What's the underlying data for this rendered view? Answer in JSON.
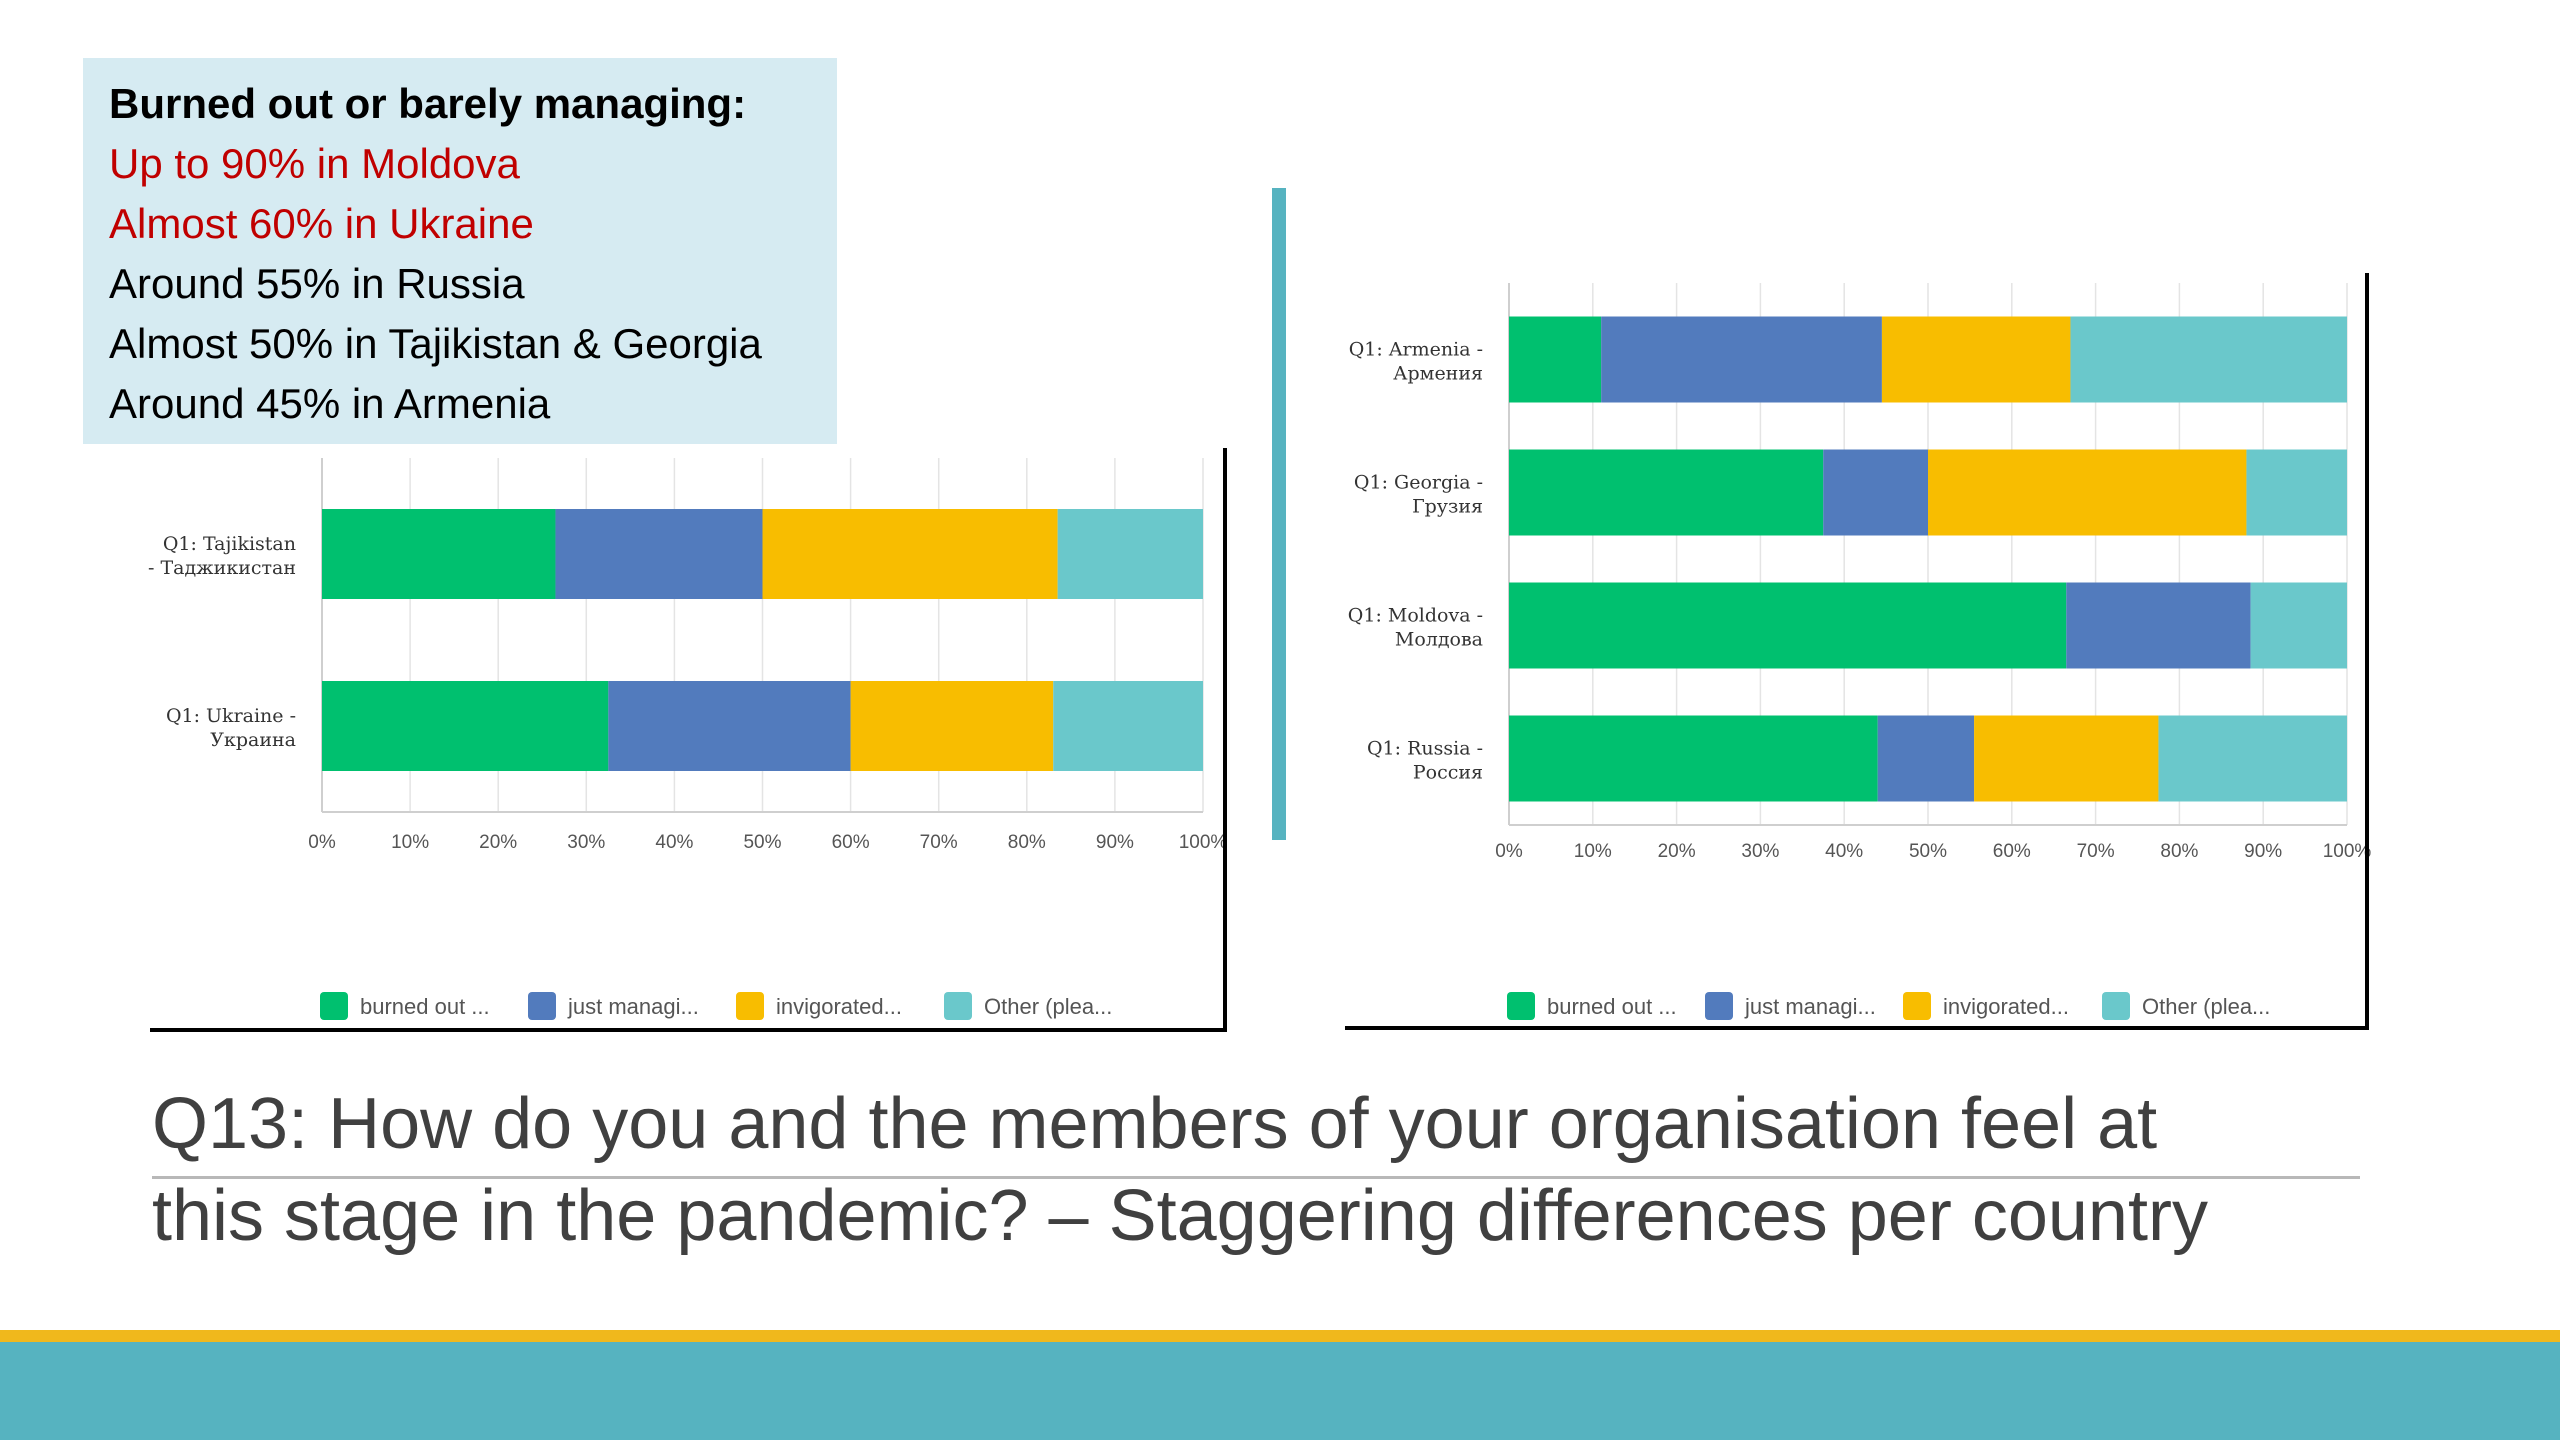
{
  "callout": {
    "heading": "Burned out or barely managing:",
    "lines": [
      "Up to 90% in Moldova",
      "Almost 60% in Ukraine",
      "Around 55% in Russia",
      "Almost 50% in Tajikistan & Georgia",
      "Around 45% in Armenia"
    ]
  },
  "title": {
    "line1": "Q13: How do you and the members of your organisation feel at",
    "line2": "this stage in the pandemic? – Staggering differences per country"
  },
  "colors": {
    "burned_out": "#00c06f",
    "just_managing": "#527bbd",
    "invigorated": "#f8bd00",
    "other": "#6ac8cb",
    "callout_bg": "#d6ebf2",
    "highlight_red": "#c00000",
    "accent_teal": "#56b3c0",
    "accent_gold": "#f0b81c"
  },
  "chart_data": [
    {
      "type": "bar",
      "orientation": "horizontal",
      "stacked": true,
      "percent_stacked": true,
      "categories": [
        [
          "Q1: Tajikistan",
          "- Таджикистан"
        ],
        [
          "Q1: Ukraine -",
          "Украина"
        ]
      ],
      "series": [
        {
          "name": "burned out ...",
          "values": [
            26.5,
            32.5
          ]
        },
        {
          "name": "just managi...",
          "values": [
            23.5,
            27.5
          ]
        },
        {
          "name": "invigorated...",
          "values": [
            33.5,
            23
          ]
        },
        {
          "name": "Other (plea...",
          "values": [
            16.5,
            17
          ]
        }
      ],
      "x_ticks": [
        "0%",
        "10%",
        "20%",
        "30%",
        "40%",
        "50%",
        "60%",
        "70%",
        "80%",
        "90%",
        "100%"
      ],
      "xlim": [
        0,
        100
      ],
      "grid": true,
      "legend": "bottom"
    },
    {
      "type": "bar",
      "orientation": "horizontal",
      "stacked": true,
      "percent_stacked": true,
      "categories": [
        [
          "Q1: Armenia -",
          "Армения"
        ],
        [
          "Q1: Georgia -",
          "Грузия"
        ],
        [
          "Q1: Moldova -",
          "Молдова"
        ],
        [
          "Q1: Russia -",
          "Россия"
        ]
      ],
      "series": [
        {
          "name": "burned out ...",
          "values": [
            11,
            37.5,
            66.5,
            44
          ]
        },
        {
          "name": "just managi...",
          "values": [
            33.5,
            12.5,
            22,
            11.5
          ]
        },
        {
          "name": "invigorated...",
          "values": [
            22.5,
            38,
            0,
            22
          ]
        },
        {
          "name": "Other (plea...",
          "values": [
            33,
            12,
            11.5,
            22.5
          ]
        }
      ],
      "x_ticks": [
        "0%",
        "10%",
        "20%",
        "30%",
        "40%",
        "50%",
        "60%",
        "70%",
        "80%",
        "90%",
        "100%"
      ],
      "xlim": [
        0,
        100
      ],
      "grid": true,
      "legend": "bottom"
    }
  ]
}
